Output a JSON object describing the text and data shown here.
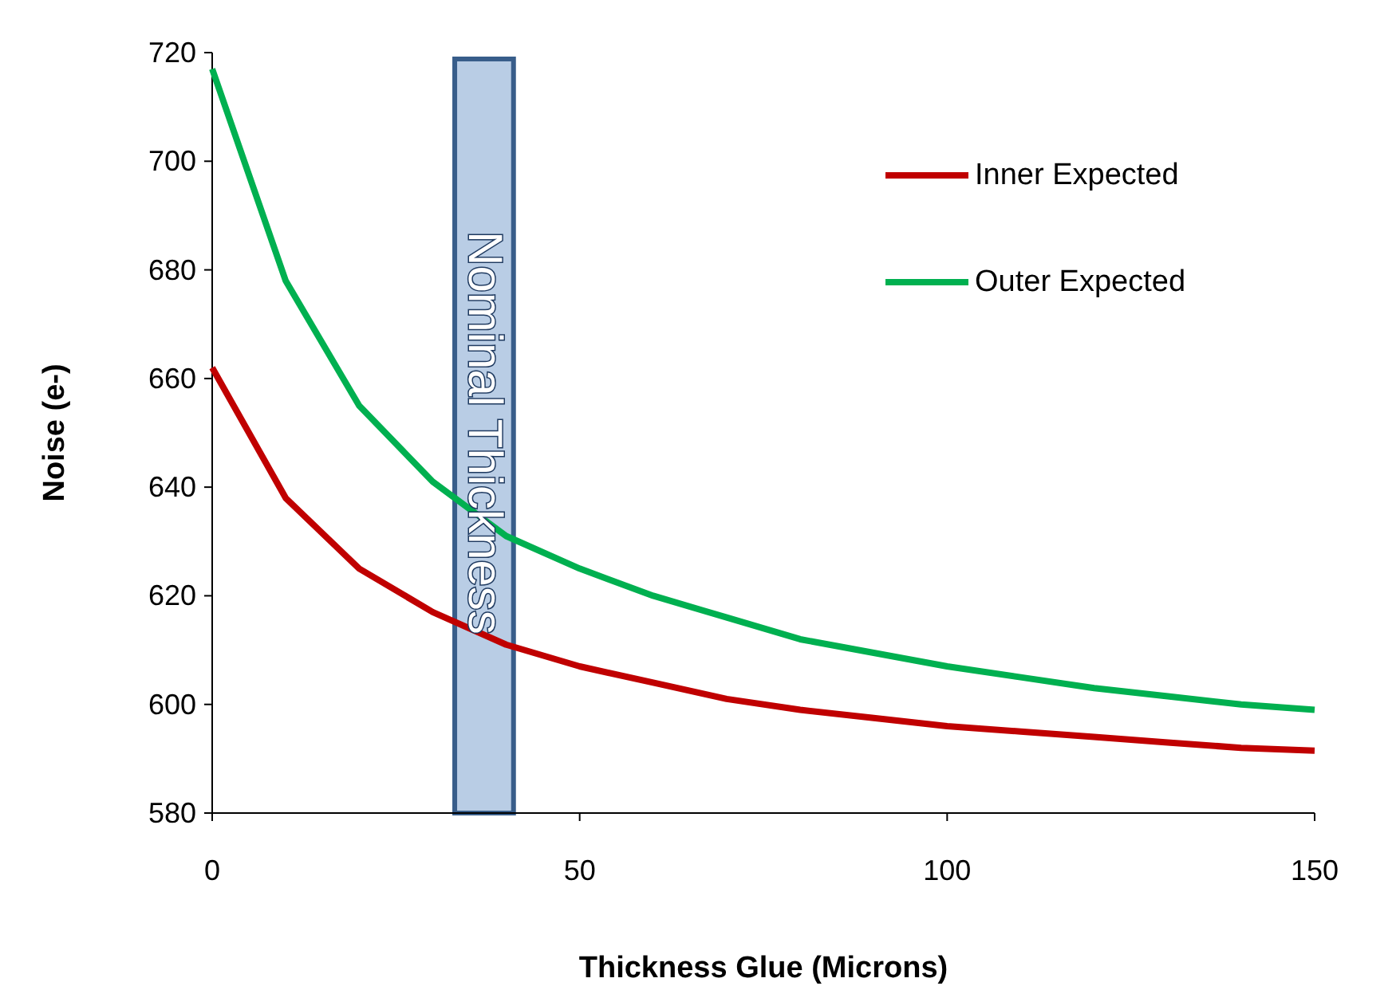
{
  "chart_data": {
    "type": "line",
    "xlabel": "Thickness Glue (Microns)",
    "ylabel": "Noise (e-)",
    "xlim": [
      0,
      150
    ],
    "xticks": [
      0,
      50,
      100,
      150
    ],
    "ylim": [
      580,
      720
    ],
    "yticks": [
      580,
      600,
      620,
      640,
      660,
      680,
      700,
      720
    ],
    "x": [
      0,
      10,
      20,
      30,
      40,
      50,
      60,
      70,
      80,
      90,
      100,
      110,
      120,
      130,
      140,
      150
    ],
    "series": [
      {
        "name": "Inner Expected",
        "color": "#c00000",
        "values": [
          662,
          638,
          625,
          617,
          611,
          607,
          604,
          601,
          599,
          597.5,
          596,
          595,
          594,
          593,
          592,
          591.5
        ]
      },
      {
        "name": "Outer Expected",
        "color": "#00b050",
        "values": [
          717,
          678,
          655,
          641,
          631,
          625,
          620,
          616,
          612,
          609.5,
          607,
          605,
          603,
          601.5,
          600,
          599
        ]
      }
    ],
    "bands": [
      {
        "axis": "x",
        "from": 33,
        "to": 41,
        "label": "Nominal Thickness",
        "color": "#b9cde5"
      }
    ],
    "legend": "top right",
    "grid": false,
    "marker": "none",
    "line_style": "solid"
  }
}
